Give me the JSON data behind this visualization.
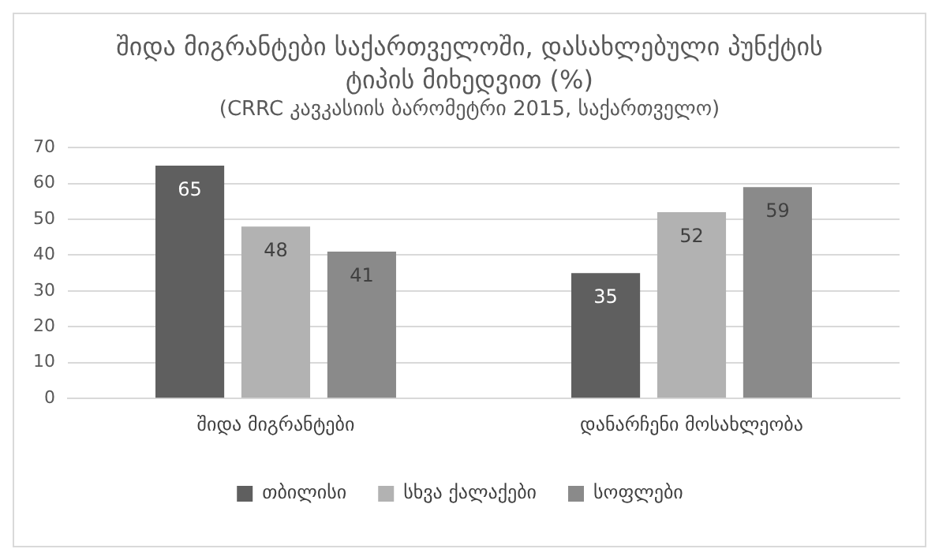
{
  "chart_data": {
    "type": "bar",
    "title": "შიდა მიგრანტები საქართველოში, დასახლებული პუნქტის ტიპის მიხედვით (%)",
    "subtitle": "(CRRC კავკასიის ბარომეტრი 2015, საქართველო)",
    "categories": [
      "შიდა მიგრანტები",
      "დანარჩენი მოსახლეობა"
    ],
    "series": [
      {
        "name": "თბილისი",
        "color": "#5f5f5f",
        "values": [
          65,
          35
        ]
      },
      {
        "name": "სხვა ქალაქები",
        "color": "#b2b2b2",
        "values": [
          48,
          52
        ]
      },
      {
        "name": "სოფლები",
        "color": "#8a8a8a",
        "values": [
          41,
          59
        ]
      }
    ],
    "ylim": [
      0,
      70
    ],
    "yticks": [
      0,
      10,
      20,
      30,
      40,
      50,
      60,
      70
    ],
    "grid": "y",
    "legend": "bottom",
    "data_labels": true
  }
}
